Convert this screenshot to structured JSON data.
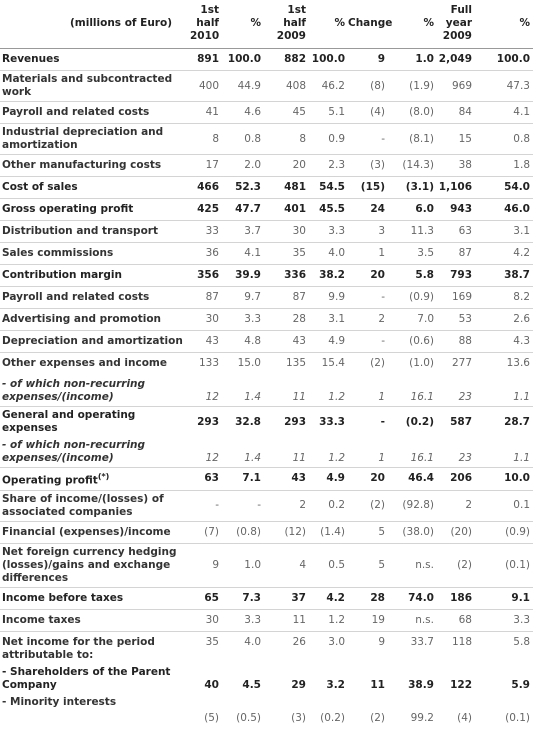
{
  "header": {
    "columns": [
      "(millions of Euro)",
      "1st\nhalf\n2010",
      "%",
      "1st\nhalf\n2009",
      "%",
      "Change",
      "%",
      "Full\nyear\n2009",
      "%"
    ]
  },
  "rows": [
    {
      "label": "Revenues",
      "cells": [
        "891",
        "100.0",
        "882",
        "100.0",
        "9",
        "1.0",
        "2,049",
        "100.0"
      ],
      "bold": true
    },
    {
      "label": "Materials and subcontracted work",
      "cells": [
        "400",
        "44.9",
        "408",
        "46.2",
        "(8)",
        "(1.9)",
        "969",
        "47.3"
      ]
    },
    {
      "label": "Payroll and related costs",
      "cells": [
        "41",
        "4.6",
        "45",
        "5.1",
        "(4)",
        "(8.0)",
        "84",
        "4.1"
      ]
    },
    {
      "label": "Industrial depreciation and amortization",
      "cells": [
        "8",
        "0.8",
        "8",
        "0.9",
        "-",
        "(8.1)",
        "15",
        "0.8"
      ]
    },
    {
      "label": "Other manufacturing costs",
      "cells": [
        "17",
        "2.0",
        "20",
        "2.3",
        "(3)",
        "(14.3)",
        "38",
        "1.8"
      ]
    },
    {
      "label": "Cost of sales",
      "cells": [
        "466",
        "52.3",
        "481",
        "54.5",
        "(15)",
        "(3.1)",
        "1,106",
        "54.0"
      ],
      "bold": true
    },
    {
      "label": "Gross operating profit",
      "cells": [
        "425",
        "47.7",
        "401",
        "45.5",
        "24",
        "6.0",
        "943",
        "46.0"
      ],
      "bold": true
    },
    {
      "label": "Distribution and transport",
      "cells": [
        "33",
        "3.7",
        "30",
        "3.3",
        "3",
        "11.3",
        "63",
        "3.1"
      ]
    },
    {
      "label": "Sales commissions",
      "cells": [
        "36",
        "4.1",
        "35",
        "4.0",
        "1",
        "3.5",
        "87",
        "4.2"
      ]
    },
    {
      "label": "Contribution margin",
      "cells": [
        "356",
        "39.9",
        "336",
        "38.2",
        "20",
        "5.8",
        "793",
        "38.7"
      ],
      "bold": true
    },
    {
      "label": "Payroll and related costs",
      "cells": [
        "87",
        "9.7",
        "87",
        "9.9",
        "-",
        "(0.9)",
        "169",
        "8.2"
      ]
    },
    {
      "label": "Advertising and promotion",
      "cells": [
        "30",
        "3.3",
        "28",
        "3.1",
        "2",
        "7.0",
        "53",
        "2.6"
      ]
    },
    {
      "label": "Depreciation and amortization",
      "cells": [
        "43",
        "4.8",
        "43",
        "4.9",
        "-",
        "(0.6)",
        "88",
        "4.3"
      ]
    },
    {
      "label": "Other expenses and income",
      "cells": [
        "133",
        "15.0",
        "135",
        "15.4",
        "(2)",
        "(1.0)",
        "277",
        "13.6"
      ],
      "valign": "top"
    },
    {
      "label": "- of which non-recurring expenses/(income)",
      "cells": [
        "12",
        "1.4",
        "11",
        "1.2",
        "1",
        "16.1",
        "23",
        "1.1"
      ],
      "italic": true,
      "border": false,
      "valign": "bottom"
    },
    {
      "label": "General and operating expenses",
      "cells": [
        "293",
        "32.8",
        "293",
        "33.3",
        "-",
        "(0.2)",
        "587",
        "28.7"
      ],
      "bold": true
    },
    {
      "label": "- of which non-recurring expenses/(income)",
      "cells": [
        "12",
        "1.4",
        "11",
        "1.2",
        "1",
        "16.1",
        "23",
        "1.1"
      ],
      "italic": true,
      "border": false,
      "valign": "bottom"
    },
    {
      "label": "Operating profit",
      "note": "(*)",
      "cells": [
        "63",
        "7.1",
        "43",
        "4.9",
        "20",
        "46.4",
        "206",
        "10.0"
      ],
      "bold": true
    },
    {
      "label": "Share of income/(losses) of associated companies",
      "cells": [
        "-",
        "-",
        "2",
        "0.2",
        "(2)",
        "(92.8)",
        "2",
        "0.1"
      ]
    },
    {
      "label": "Financial (expenses)/income",
      "cells": [
        "(7)",
        "(0.8)",
        "(12)",
        "(1.4)",
        "5",
        "(38.0)",
        "(20)",
        "(0.9)"
      ]
    },
    {
      "label": "Net foreign currency hedging (losses)/gains and exchange differences",
      "cells": [
        "9",
        "1.0",
        "4",
        "0.5",
        "5",
        "n.s.",
        "(2)",
        "(0.1)"
      ]
    },
    {
      "label": "Income before taxes",
      "cells": [
        "65",
        "7.3",
        "37",
        "4.2",
        "28",
        "74.0",
        "186",
        "9.1"
      ],
      "bold": true
    },
    {
      "label": "Income taxes",
      "cells": [
        "30",
        "3.3",
        "11",
        "1.2",
        "19",
        "n.s.",
        "68",
        "3.3"
      ]
    },
    {
      "label": "Net income for the period attributable to:",
      "cells": [
        "35",
        "4.0",
        "26",
        "3.0",
        "9",
        "33.7",
        "118",
        "5.8"
      ],
      "valign": "top"
    },
    {
      "label": "- Shareholders of the Parent Company",
      "cells": [
        "40",
        "4.5",
        "29",
        "3.2",
        "11",
        "38.9",
        "122",
        "5.9"
      ],
      "bold": true,
      "border": false,
      "valign": "bottom"
    },
    {
      "label": "- Minority interests",
      "cells": [
        "(5)",
        "(0.5)",
        "(3)",
        "(0.2)",
        "(2)",
        "99.2",
        "(4)",
        "(0.1)"
      ],
      "border": false,
      "valign": "below"
    }
  ]
}
